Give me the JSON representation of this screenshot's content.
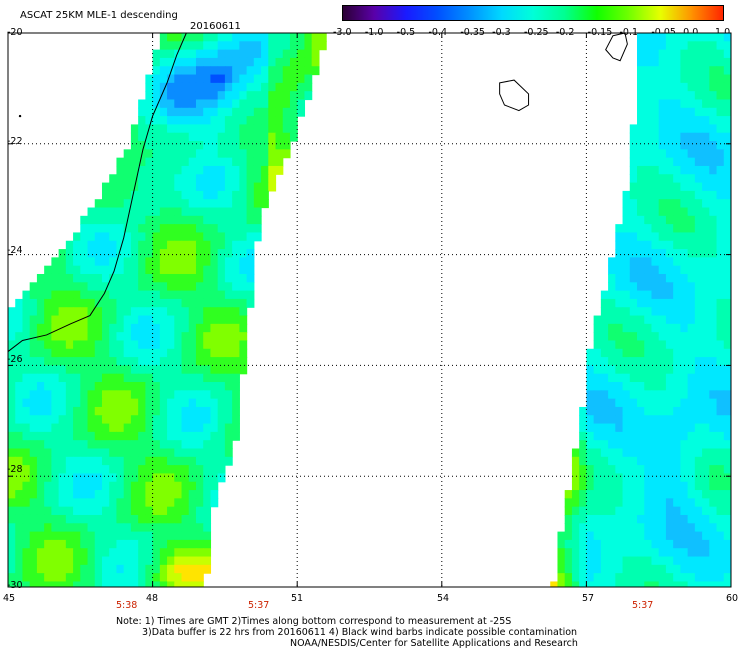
{
  "header": {
    "title": "ASCAT 25KM MLE-1 descending",
    "date": "20160611"
  },
  "map": {
    "lat_labels": [
      "-20",
      "-22",
      "-24",
      "-26",
      "-28",
      "-30"
    ],
    "lon_labels": [
      "45",
      "48",
      "51",
      "54",
      "57",
      "60"
    ],
    "pass_times": [
      "5:38",
      "5:37",
      "5:37"
    ],
    "lat_range": [
      -30,
      -20
    ],
    "lon_range": [
      45,
      60
    ],
    "gridlines": true,
    "coast_color": "#000000",
    "missing_color": "#ffffff"
  },
  "colorbar": {
    "labels": [
      "-3.0",
      "-1.0",
      "-0.5",
      "-0.4",
      "-0.35",
      "-0.3",
      "-0.25",
      "-0.2",
      "-0.15",
      "-0.1",
      "-0.05",
      "0.0",
      "1.0"
    ],
    "colors": [
      "#2a0030",
      "#5a00a8",
      "#1a1aff",
      "#0050ff",
      "#0090ff",
      "#00d8ff",
      "#00ffd8",
      "#00ff90",
      "#10ff00",
      "#70ff00",
      "#e8ff00",
      "#ff9000",
      "#ff2000"
    ]
  },
  "notes": {
    "line1": "Note: 1) Times are GMT 2)Times along bottom correspond to measurement at -25S",
    "line2": "3)Data buffer is 22 hrs from 20160611 4) Black wind barbs indicate possible contamination",
    "line3": "NOAA/NESDIS/Center for Satellite Applications and Research"
  }
}
